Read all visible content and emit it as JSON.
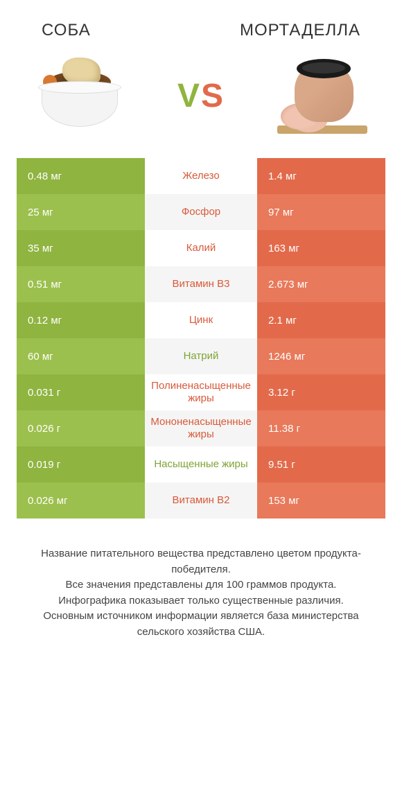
{
  "titles": {
    "left": "Соба",
    "right": "Мортаделла"
  },
  "vs": {
    "v": "V",
    "s": "S"
  },
  "colors": {
    "green_a": "#8fb440",
    "green_b": "#9cc04d",
    "orange_a": "#e26a4a",
    "orange_b": "#e8795a",
    "mid_bg_a": "#ffffff",
    "mid_bg_b": "#f5f5f5",
    "text_green": "#7ea434",
    "text_orange": "#d85a3a"
  },
  "rows": [
    {
      "left": "0.48 мг",
      "mid": "Железо",
      "right": "1.4 мг",
      "winner": "right"
    },
    {
      "left": "25 мг",
      "mid": "Фосфор",
      "right": "97 мг",
      "winner": "right"
    },
    {
      "left": "35 мг",
      "mid": "Калий",
      "right": "163 мг",
      "winner": "right"
    },
    {
      "left": "0.51 мг",
      "mid": "Витамин B3",
      "right": "2.673 мг",
      "winner": "right"
    },
    {
      "left": "0.12 мг",
      "mid": "Цинк",
      "right": "2.1 мг",
      "winner": "right"
    },
    {
      "left": "60 мг",
      "mid": "Натрий",
      "right": "1246 мг",
      "winner": "left"
    },
    {
      "left": "0.031 г",
      "mid": "Полиненасыщенные жиры",
      "right": "3.12 г",
      "winner": "right"
    },
    {
      "left": "0.026 г",
      "mid": "Мононенасыщенные жиры",
      "right": "11.38 г",
      "winner": "right"
    },
    {
      "left": "0.019 г",
      "mid": "Насыщенные жиры",
      "right": "9.51 г",
      "winner": "left"
    },
    {
      "left": "0.026 мг",
      "mid": "Витамин B2",
      "right": "153 мг",
      "winner": "right"
    }
  ],
  "footer": {
    "l1": "Название питательного вещества представлено цветом продукта-победителя.",
    "l2": "Все значения представлены для 100 граммов продукта.",
    "l3": "Инфографика показывает только существенные различия.",
    "l4": "Основным источником информации является база министерства сельского хозяйства США."
  }
}
